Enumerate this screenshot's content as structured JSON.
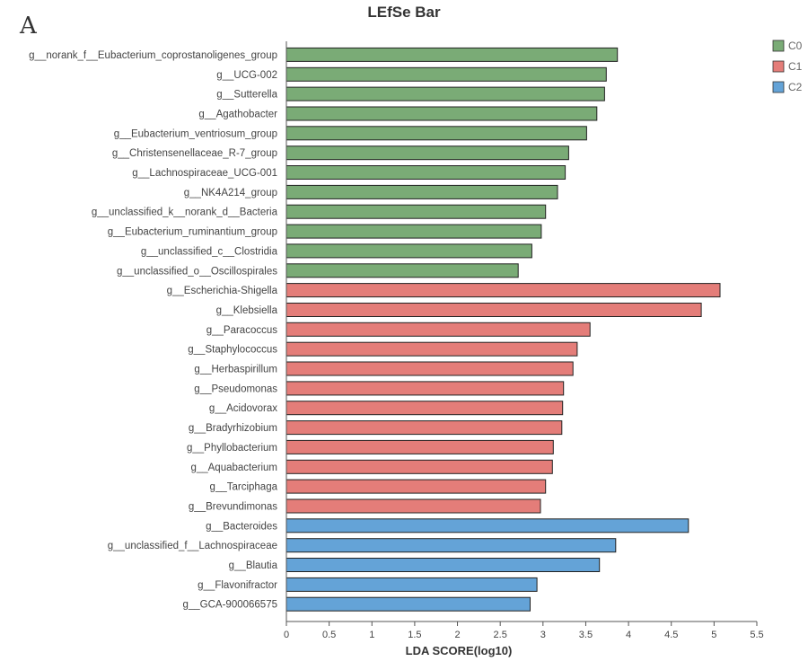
{
  "panel_letter": "A",
  "chart_data": {
    "type": "bar",
    "orientation": "horizontal",
    "title": "LEfSe Bar",
    "xlabel": "LDA SCORE(log10)",
    "ylabel": "",
    "xlim": [
      0,
      5.5
    ],
    "xticks": [
      "0",
      "0.5",
      "1",
      "1.5",
      "2",
      "2.5",
      "3",
      "3.5",
      "4",
      "4.5",
      "5",
      "5.5"
    ],
    "grid": false,
    "legend_position": "top-right",
    "groups": [
      {
        "name": "C0",
        "color": "#7aab76"
      },
      {
        "name": "C1",
        "color": "#e47d79"
      },
      {
        "name": "C2",
        "color": "#64a3d7"
      }
    ],
    "bars": [
      {
        "label": "g__norank_f__Eubacterium_coprostanoligenes_group",
        "value": 3.87,
        "group": "C0"
      },
      {
        "label": "g__UCG-002",
        "value": 3.74,
        "group": "C0"
      },
      {
        "label": "g__Sutterella",
        "value": 3.72,
        "group": "C0"
      },
      {
        "label": "g__Agathobacter",
        "value": 3.63,
        "group": "C0"
      },
      {
        "label": "g__Eubacterium_ventriosum_group",
        "value": 3.51,
        "group": "C0"
      },
      {
        "label": "g__Christensenellaceae_R-7_group",
        "value": 3.3,
        "group": "C0"
      },
      {
        "label": "g__Lachnospiraceae_UCG-001",
        "value": 3.26,
        "group": "C0"
      },
      {
        "label": "g__NK4A214_group",
        "value": 3.17,
        "group": "C0"
      },
      {
        "label": "g__unclassified_k__norank_d__Bacteria",
        "value": 3.03,
        "group": "C0"
      },
      {
        "label": "g__Eubacterium_ruminantium_group",
        "value": 2.98,
        "group": "C0"
      },
      {
        "label": "g__unclassified_c__Clostridia",
        "value": 2.87,
        "group": "C0"
      },
      {
        "label": "g__unclassified_o__Oscillospirales",
        "value": 2.71,
        "group": "C0"
      },
      {
        "label": "g__Escherichia-Shigella",
        "value": 5.07,
        "group": "C1"
      },
      {
        "label": "g__Klebsiella",
        "value": 4.85,
        "group": "C1"
      },
      {
        "label": "g__Paracoccus",
        "value": 3.55,
        "group": "C1"
      },
      {
        "label": "g__Staphylococcus",
        "value": 3.4,
        "group": "C1"
      },
      {
        "label": "g__Herbaspirillum",
        "value": 3.35,
        "group": "C1"
      },
      {
        "label": "g__Pseudomonas",
        "value": 3.24,
        "group": "C1"
      },
      {
        "label": "g__Acidovorax",
        "value": 3.23,
        "group": "C1"
      },
      {
        "label": "g__Bradyrhizobium",
        "value": 3.22,
        "group": "C1"
      },
      {
        "label": "g__Phyllobacterium",
        "value": 3.12,
        "group": "C1"
      },
      {
        "label": "g__Aquabacterium",
        "value": 3.11,
        "group": "C1"
      },
      {
        "label": "g__Tarciphaga",
        "value": 3.03,
        "group": "C1"
      },
      {
        "label": "g__Brevundimonas",
        "value": 2.97,
        "group": "C1"
      },
      {
        "label": "g__Bacteroides",
        "value": 4.7,
        "group": "C2"
      },
      {
        "label": "g__unclassified_f__Lachnospiraceae",
        "value": 3.85,
        "group": "C2"
      },
      {
        "label": "g__Blautia",
        "value": 3.66,
        "group": "C2"
      },
      {
        "label": "g__Flavonifractor",
        "value": 2.93,
        "group": "C2"
      },
      {
        "label": "g__GCA-900066575",
        "value": 2.85,
        "group": "C2"
      }
    ]
  }
}
